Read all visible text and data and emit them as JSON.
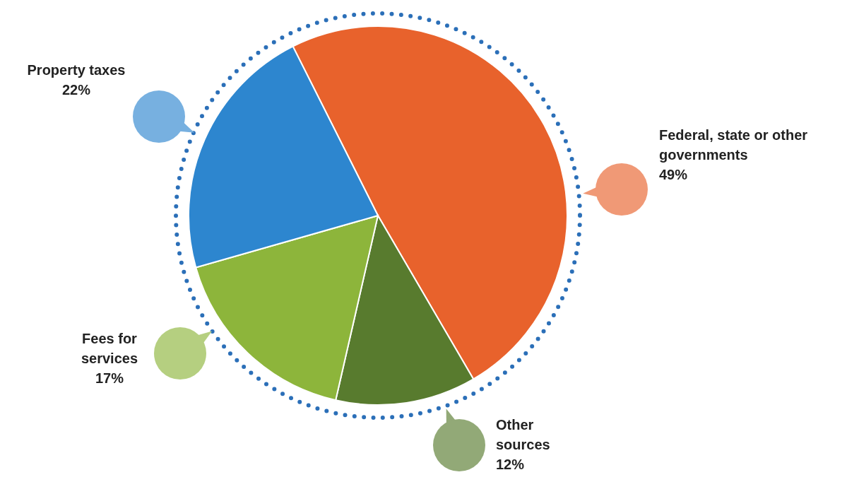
{
  "chart_data": {
    "type": "pie",
    "categories": [
      "Federal, state or other governments",
      "Other sources",
      "Fees for services",
      "Property taxes"
    ],
    "values": [
      49,
      12,
      17,
      22
    ],
    "colors": [
      "#e8622c",
      "#587b2e",
      "#8db53b",
      "#2d86cf"
    ],
    "value_labels": [
      "49%",
      "12%",
      "17%",
      "22%"
    ]
  }
}
